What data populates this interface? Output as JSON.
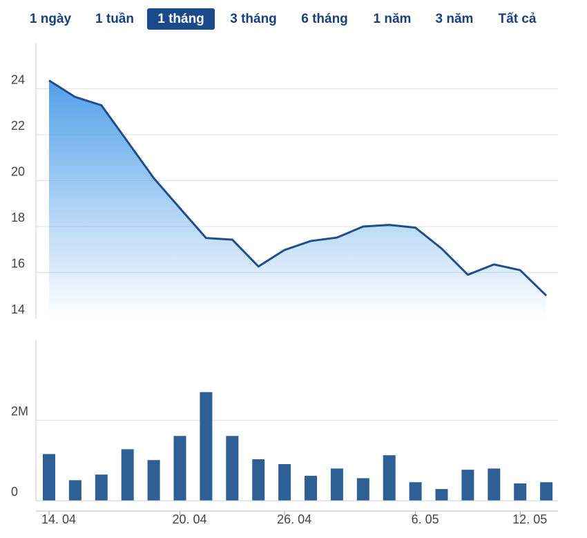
{
  "tabs": [
    "1 ngày",
    "1 tuần",
    "1 tháng",
    "3 tháng",
    "6 tháng",
    "1 năm",
    "3 năm",
    "Tất cả"
  ],
  "active_tab": 2,
  "chart_data": [
    {
      "type": "area",
      "color": "#1f4e8c",
      "fill": "#4a9be8",
      "categories": [
        "14. 04",
        null,
        null,
        null,
        null,
        "20. 04",
        null,
        null,
        null,
        "26. 04",
        null,
        null,
        null,
        null,
        "6. 05",
        null,
        null,
        null,
        "12. 05",
        null
      ],
      "values": [
        24.36,
        23.64,
        23.28,
        21.7,
        20.11,
        18.8,
        17.5,
        17.43,
        16.26,
        16.98,
        17.37,
        17.52,
        18.0,
        18.07,
        17.95,
        17.04,
        15.9,
        16.35,
        16.1,
        14.99
      ],
      "ylim": [
        14,
        26
      ],
      "yticks": [
        14,
        16,
        18,
        20,
        22,
        24
      ],
      "grid": true
    },
    {
      "type": "bar",
      "color": "#2e6096",
      "values": [
        1160000,
        510000,
        650000,
        1280000,
        1010000,
        1610000,
        2700000,
        1610000,
        1030000,
        910000,
        620000,
        800000,
        560000,
        1130000,
        460000,
        290000,
        770000,
        800000,
        430000,
        460000
      ],
      "ylim": [
        0,
        4000000
      ],
      "yticks": [
        0,
        {
          "value": 2000000,
          "label": "2M"
        }
      ],
      "grid": true
    }
  ]
}
